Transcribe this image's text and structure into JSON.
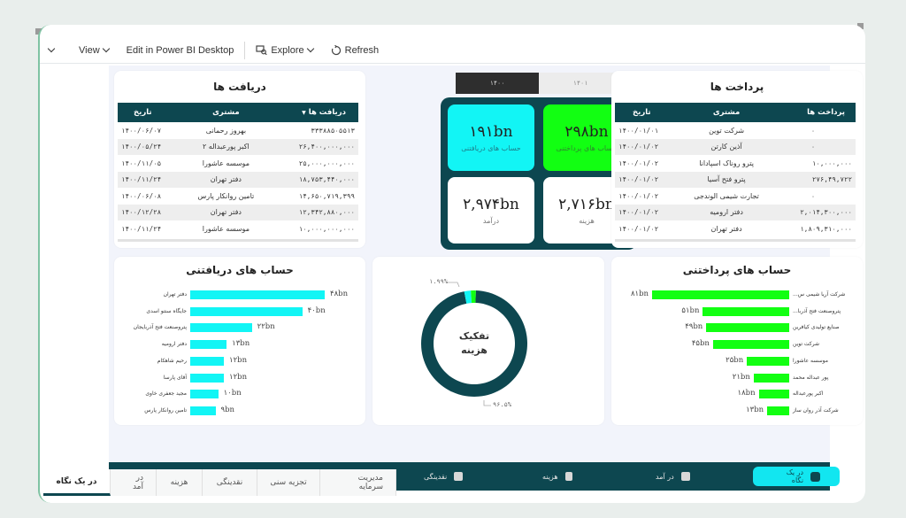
{
  "toolbar": {
    "collapse_label": "",
    "view_label": "View",
    "edit_label": "Edit in Power BI Desktop",
    "explore_label": "Explore",
    "refresh_label": "Refresh"
  },
  "year_switch": {
    "options": [
      "۱۴۰۰",
      "۱۴۰۱"
    ],
    "selected": "۱۴۰۰"
  },
  "receipts_table": {
    "title": "دریافت ها",
    "headers": [
      "دریافت ها",
      "مشتری",
      "تاریخ"
    ],
    "rows": [
      [
        "۳۳۳۸۸۵۰۵۵۱۳",
        "بهروز رحمانی",
        "۱۴۰۰/۰۶/۰۷"
      ],
      [
        "۲۶,۴۰۰,۰۰۰,۰۰۰",
        "اکبر پورعبداله ۲",
        "۱۴۰۰/۰۵/۲۴"
      ],
      [
        "۲۵,۰۰۰,۰۰۰,۰۰۰",
        "موسسه عاشورا",
        "۱۴۰۰/۱۱/۰۵"
      ],
      [
        "۱۸,۷۵۳,۴۴۰,۰۰۰",
        "دفتر تهران",
        "۱۴۰۰/۱۱/۲۴"
      ],
      [
        "۱۴,۶۵۰,۷۱۹,۳۹۹",
        "تامین روانکار پارس",
        "۱۴۰۰/۰۶/۰۸"
      ],
      [
        "۱۲,۳۴۲,۸۸۰,۰۰۰",
        "دفتر تهران",
        "۱۴۰۰/۱۲/۲۸"
      ],
      [
        "۱۰,۰۰۰,۰۰۰,۰۰۰",
        "موسسه عاشورا",
        "۱۴۰۰/۱۱/۲۴"
      ]
    ]
  },
  "payments_table": {
    "title": "پرداخت ها",
    "headers": [
      "پرداخت ها",
      "مشتری",
      "تاریخ"
    ],
    "rows": [
      [
        "۰",
        "شرکت توین",
        "۱۴۰۰/۰۱/۰۱"
      ],
      [
        "۰",
        "آذین کارتن",
        "۱۴۰۰/۰۱/۰۲"
      ],
      [
        "۱۰,۰۰۰,۰۰۰",
        "پترو روناک اسپادانا",
        "۱۴۰۰/۰۱/۰۲"
      ],
      [
        "۲۷۶,۴۹,۷۲۲",
        "پترو فتح آسیا",
        "۱۴۰۰/۰۱/۰۲"
      ],
      [
        "۰",
        "تجارت شیمی الوندجی",
        "۱۴۰۰/۰۱/۰۲"
      ],
      [
        "۲,۰۱۴,۳۰۰,۰۰۰",
        "دفتر ارومیه",
        "۱۴۰۰/۰۱/۰۲"
      ],
      [
        "۱,۸۰۹,۳۱۰,۰۰۰",
        "دفتر تهران",
        "۱۴۰۰/۰۱/۰۲"
      ]
    ]
  },
  "kpis": {
    "receivables": {
      "value": "۱۹۱bn",
      "label": "حساب های دریافتنی",
      "color": "#12f5f5"
    },
    "payables": {
      "value": "۲۹۸bn",
      "label": "حساب های پرداختنی",
      "color": "#12ff12"
    },
    "income": {
      "value": "۲,۹۷۴bn",
      "label": "درآمد"
    },
    "expense": {
      "value": "۲,۷۱۶bn",
      "label": "هزینه"
    }
  },
  "receivables_chart": {
    "title": "حساب های دریافتنی",
    "bars": [
      {
        "label": "دفتر تهران",
        "value": 48,
        "text": "۴۸bn"
      },
      {
        "label": "جایگاه سنتو اسدی",
        "value": 40,
        "text": "۴۰bn"
      },
      {
        "label": "پتروصنعت فتح آذربایجان",
        "value": 22,
        "text": "۲۲bn"
      },
      {
        "label": "دفتر ارومیه",
        "value": 13,
        "text": "۱۳bn"
      },
      {
        "label": "رحیم شاهکام",
        "value": 12,
        "text": "۱۲bn"
      },
      {
        "label": "آقای پارسا",
        "value": 12,
        "text": "۱۲bn"
      },
      {
        "label": "مجید جعفری خاوی",
        "value": 10,
        "text": "۱۰bn"
      },
      {
        "label": "تامین روانکار پارس",
        "value": 9,
        "text": "۹bn"
      }
    ]
  },
  "payables_chart": {
    "title": "حساب های پرداختنی",
    "bars": [
      {
        "label": "شرکت آریا شیمی س...",
        "value": 81,
        "text": "۸۱bn"
      },
      {
        "label": "پتروصنعت فتح آذربا...",
        "value": 51,
        "text": "۵۱bn"
      },
      {
        "label": "صنایع تولیدی کیافرین",
        "value": 49,
        "text": "۴۹bn"
      },
      {
        "label": "شرکت توین",
        "value": 45,
        "text": "۴۵bn"
      },
      {
        "label": "موسسه عاشورا",
        "value": 25,
        "text": "۲۵bn"
      },
      {
        "label": "پور عبداله محمد",
        "value": 21,
        "text": "۲۱bn"
      },
      {
        "label": "اکبر پورعبداله",
        "value": 18,
        "text": "۱۸bn"
      },
      {
        "label": "شرکت آذر روان ساز",
        "value": 13,
        "text": "۱۳bn"
      }
    ]
  },
  "donut": {
    "center_line1": "تفکیک",
    "center_line2": "هزینه",
    "label_small": "۱.۹۹%",
    "label_large": "۹۶.۵%",
    "segments": [
      {
        "value": 96.5,
        "color": "#0d4750"
      },
      {
        "value": 1.99,
        "color": "#12f5f5"
      },
      {
        "value": 1.51,
        "color": "#12ff12"
      }
    ]
  },
  "chart_data": [
    {
      "type": "bar",
      "title": "حساب های دریافتنی",
      "categories": [
        "دفتر تهران",
        "جایگاه سنتو اسدی",
        "پتروصنعت فتح آذربایجان",
        "دفتر ارومیه",
        "رحیم شاهکام",
        "آقای پارسا",
        "مجید جعفری خاوی",
        "تامین روانکار پارس"
      ],
      "values": [
        48,
        40,
        22,
        13,
        12,
        12,
        10,
        9
      ],
      "xlabel": "",
      "ylabel": "",
      "unit": "bn"
    },
    {
      "type": "bar",
      "title": "حساب های پرداختنی",
      "categories": [
        "شرکت آریا شیمی س...",
        "پتروصنعت فتح آذربا...",
        "صنایع تولیدی کیافرین",
        "شرکت توین",
        "موسسه عاشورا",
        "پور عبداله محمد",
        "اکبر پورعبداله",
        "شرکت آذر روان ساز"
      ],
      "values": [
        81,
        51,
        49,
        45,
        25,
        21,
        18,
        13
      ],
      "xlabel": "",
      "ylabel": "",
      "unit": "bn"
    },
    {
      "type": "pie",
      "title": "تفکیک هزینه",
      "categories": [
        "main",
        "cyan",
        "green"
      ],
      "values": [
        96.5,
        1.99,
        1.51
      ]
    }
  ],
  "navbar": {
    "items": [
      {
        "label": "در یک نگاه",
        "icon": "coins-icon",
        "active": true
      },
      {
        "label": "در آمد",
        "icon": "hand-money-icon"
      },
      {
        "label": "هزینه",
        "icon": "receipt-icon"
      },
      {
        "label": "نقدینگی",
        "icon": "cash-icon"
      },
      {
        "label": "تجزیه سنی",
        "icon": "bug-icon"
      },
      {
        "label": "مدیریت سرمایه",
        "icon": "piggy-bank-icon"
      }
    ]
  },
  "page_tabs": [
    "در یک نگاه",
    "در آمد",
    "هزینه",
    "نقدینگی",
    "تجزیه سنی",
    "مدیریت سرمایه"
  ]
}
